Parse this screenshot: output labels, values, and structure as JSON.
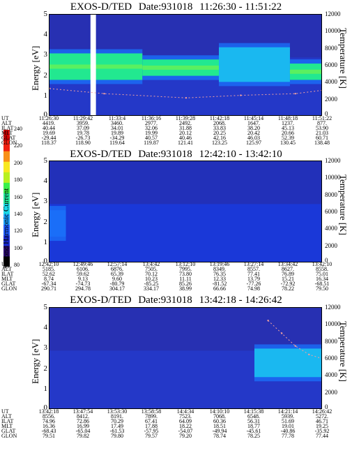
{
  "colorbar": {
    "label": "Second Harmonic Current",
    "ticks": [
      "240",
      "220",
      "200",
      "180",
      "160",
      "140",
      "120",
      "100",
      "80"
    ],
    "colors": [
      "#000000",
      "#2a0a6e",
      "#1a2ad0",
      "#1f5cff",
      "#1aa0ff",
      "#19d8e8",
      "#20e89a",
      "#3af04a",
      "#b8f020",
      "#f8e820",
      "#f89018",
      "#f02010",
      "#d00000"
    ]
  },
  "panels": [
    {
      "title": {
        "name": "EXOS-D/TED",
        "date": "Date:931018",
        "range": "11:26:30 - 11:51:22"
      },
      "y_label": "Energy [eV]",
      "y_ticks": [
        "5",
        "4",
        "3",
        "2",
        "1",
        "0"
      ],
      "right_label": "Temperature [K]",
      "right_ticks": [
        "12000",
        "10000",
        "8000",
        "6000",
        "4000",
        "2000",
        "0"
      ],
      "orbit_labels": [
        "UT",
        "ALT",
        "ILAT",
        "MLT",
        "GLAT",
        "GLON"
      ],
      "orbit_columns": [
        [
          "11:26:30",
          "4419.",
          "40.44",
          "19.69",
          "-29.44",
          "118.37"
        ],
        [
          "11:29:42",
          "3959.",
          "37.09",
          "19.78",
          "-26.73",
          "118.90"
        ],
        [
          "11:33:4",
          "3460.",
          "34.01",
          "19.89",
          "-34.29",
          "119.64"
        ],
        [
          "11:36:16",
          "2977.",
          "32.06",
          "19.99",
          "40.57",
          "119.87"
        ],
        [
          "11:39:28",
          "2492.",
          "31.88",
          "20.12",
          "40.46",
          "121.41"
        ],
        [
          "11:42:18",
          "2068.",
          "33.83",
          "20.25",
          "42.16",
          "123.25"
        ],
        [
          "11:45:14",
          "1647.",
          "38.20",
          "20.42",
          "46.03",
          "125.97"
        ],
        [
          "11:48:18",
          "1237.",
          "45.13",
          "20.66",
          "52.39",
          "130.45"
        ],
        [
          "11:51:22",
          "877.",
          "53.90",
          "21.03",
          "60.71",
          "138.48"
        ]
      ]
    },
    {
      "title": {
        "name": "EXOS-D/TED",
        "date": "Date:931018",
        "range": "12:42:10 - 13:42:10"
      },
      "y_label": "Energy [eV]",
      "y_ticks": [
        "5",
        "4",
        "3",
        "2",
        "1",
        "0"
      ],
      "right_label": "Temperature [K]",
      "right_ticks": [
        "12000",
        "10000",
        "8000",
        "6000",
        "4000",
        "2000",
        "0"
      ],
      "orbit_labels": [
        "UT",
        "ALT",
        "ILAT",
        "MLT",
        "GLAT",
        "GLON"
      ],
      "orbit_columns": [
        [
          "12:42:10",
          "5185.",
          "52.62",
          "8.74",
          "-67.34",
          "290.71"
        ],
        [
          "12:49:46",
          "6106.",
          "59.62",
          "9.13",
          "-74.73",
          "294.78"
        ],
        [
          "12:57:14",
          "6876.",
          "65.39",
          "9.60",
          "-80.79",
          "304.17"
        ],
        [
          "13:4:42",
          "7505.",
          "70.12",
          "10.23",
          "-85.25",
          "334.17"
        ],
        [
          "13:12:10",
          "7995.",
          "73.80",
          "11.11",
          "85.26",
          "38.99"
        ],
        [
          "13:19:46",
          "8349.",
          "76.35",
          "12.33",
          "-81.52",
          "66.66"
        ],
        [
          "13:27:14",
          "8557.",
          "77.41",
          "13.79",
          "-77.26",
          "74.98"
        ],
        [
          "13:34:42",
          "8627.",
          "76.89",
          "15.21",
          "-72.92",
          "78.22"
        ],
        [
          "13:42:10",
          "8558.",
          "75.01",
          "16.34",
          "-68.51",
          "79.50"
        ]
      ]
    },
    {
      "title": {
        "name": "EXOS-D/TED",
        "date": "Date:931018",
        "range": "13:42:18 - 14:26:42"
      },
      "y_label": "Energy [eV]",
      "y_ticks": [
        "5",
        "4",
        "3",
        "2",
        "1",
        "0"
      ],
      "right_label": "Temperature [K]",
      "right_ticks": [
        "12000",
        "10000",
        "8000",
        "6000",
        "4000",
        "2000",
        "0"
      ],
      "orbit_labels": [
        "UT",
        "ALT",
        "ILAT",
        "MLT",
        "GLAT",
        "GLON"
      ],
      "orbit_columns": [
        [
          "13:42:18",
          "8556.",
          "74.96",
          "16.36",
          "-68.43",
          "79.51"
        ],
        [
          "13:47:54",
          "8412.",
          "72.86",
          "16.99",
          "-65.04",
          "79.82"
        ],
        [
          "13:53:30",
          "8191.",
          "70.29",
          "17.49",
          "-61.53",
          "79.80"
        ],
        [
          "13:58:58",
          "7899.",
          "67.41",
          "17.88",
          "-57.95",
          "79.57"
        ],
        [
          "14:4:34",
          "7523.",
          "64.09",
          "18.22",
          "-54.07",
          "79.20"
        ],
        [
          "14:10:10",
          "7068.",
          "60.36",
          "18.51",
          "-49.94",
          "78.74"
        ],
        [
          "14:15:38",
          "6548.",
          "56.31",
          "18.77",
          "-45.61",
          "78.25"
        ],
        [
          "14:21:14",
          "5939.",
          "51.69",
          "19.01",
          "-40.86",
          "77.78"
        ],
        [
          "14:26:42",
          "5272.",
          "46.71",
          "19.25",
          "-35.92",
          "77.44"
        ]
      ]
    }
  ],
  "chart_data": [
    {
      "type": "heatmap",
      "title": "EXOS-D/TED Date:931018 11:26:30 - 11:51:22",
      "ylabel": "Energy [eV]",
      "ylim": [
        0,
        5
      ],
      "y2label": "Temperature [K]",
      "y2lim": [
        0,
        12000
      ],
      "x_ticks": [
        "11:26:30",
        "11:29:42",
        "11:33:4",
        "11:36:16",
        "11:39:28",
        "11:42:18",
        "11:45:14",
        "11:48:18",
        "11:51:22"
      ],
      "colorbar": {
        "label": "Second Harmonic Current",
        "range": [
          80,
          240
        ]
      },
      "bands": [
        {
          "x": [
            0.0,
            0.34
          ],
          "y": [
            1.8,
            3.1
          ],
          "level": "high"
        },
        {
          "x": [
            0.34,
            0.62
          ],
          "y": [
            2.0,
            2.8
          ],
          "level": "high"
        },
        {
          "x": [
            0.62,
            0.88
          ],
          "y": [
            1.7,
            3.4
          ],
          "level": "medium"
        },
        {
          "x": [
            0.88,
            1.0
          ],
          "y": [
            1.8,
            2.6
          ],
          "level": "high"
        }
      ],
      "data_gap": [
        0.15,
        0.17
      ],
      "temperature_trace": [
        [
          0.0,
          3300
        ],
        [
          0.2,
          2700
        ],
        [
          0.5,
          2200
        ],
        [
          0.7,
          2500
        ],
        [
          0.9,
          2700
        ],
        [
          1.0,
          3100
        ]
      ]
    },
    {
      "type": "heatmap",
      "title": "EXOS-D/TED Date:931018 12:42:10 - 13:42:10",
      "ylabel": "Energy [eV]",
      "ylim": [
        0,
        5
      ],
      "y2label": "Temperature [K]",
      "y2lim": [
        0,
        12000
      ],
      "x_ticks": [
        "12:42:10",
        "12:49:46",
        "12:57:14",
        "13:4:42",
        "13:12:10",
        "13:19:46",
        "13:27:14",
        "13:34:42",
        "13:42:10"
      ],
      "colorbar": {
        "label": "Second Harmonic Current",
        "range": [
          80,
          240
        ]
      },
      "bands": [
        {
          "x": [
            0.0,
            0.06
          ],
          "y": [
            1.3,
            2.6
          ],
          "level": "low"
        }
      ]
    },
    {
      "type": "heatmap",
      "title": "EXOS-D/TED Date:931018 13:42:18 - 14:26:42",
      "ylabel": "Energy [eV]",
      "ylim": [
        0,
        5
      ],
      "y2label": "Temperature [K]",
      "y2lim": [
        0,
        12000
      ],
      "x_ticks": [
        "13:42:18",
        "13:47:54",
        "13:53:30",
        "13:58:58",
        "14:4:34",
        "14:10:10",
        "14:15:38",
        "14:21:14",
        "14:26:42"
      ],
      "colorbar": {
        "label": "Second Harmonic Current",
        "range": [
          80,
          240
        ]
      },
      "bands": [
        {
          "x": [
            0.75,
            1.0
          ],
          "y": [
            1.6,
            3.0
          ],
          "level": "medium"
        }
      ],
      "temperature_trace": [
        [
          0.8,
          10500
        ],
        [
          0.85,
          9000
        ],
        [
          0.9,
          7500
        ],
        [
          0.95,
          6500
        ],
        [
          1.0,
          6000
        ]
      ]
    }
  ]
}
